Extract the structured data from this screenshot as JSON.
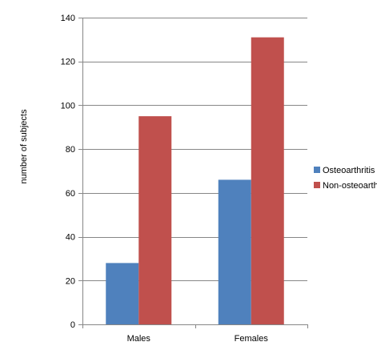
{
  "chart_data": {
    "type": "bar",
    "title": "",
    "xlabel": "",
    "ylabel": "number of subjects",
    "categories": [
      "Males",
      "Females"
    ],
    "series": [
      {
        "name": "Osteoarthritis",
        "values": [
          28,
          66
        ],
        "color": "#4f81bd"
      },
      {
        "name": "Non-osteoarthritis",
        "values": [
          95,
          131
        ],
        "color": "#c0504d"
      }
    ],
    "ylim": [
      0,
      140
    ],
    "yticks": [
      0,
      20,
      40,
      60,
      80,
      100,
      120,
      140
    ],
    "grid": true,
    "legend_position": "right"
  }
}
